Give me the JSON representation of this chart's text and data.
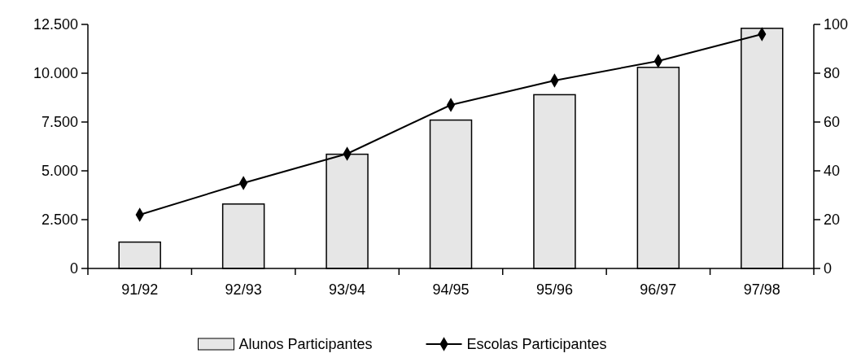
{
  "chart_data": {
    "type": "bar",
    "categories": [
      "91/92",
      "92/93",
      "93/94",
      "94/95",
      "95/96",
      "96/97",
      "97/98"
    ],
    "series": [
      {
        "name": "Alunos Participantes",
        "color": "#e6e6e6",
        "values": [
          1350,
          3300,
          5850,
          7600,
          8900,
          10300,
          12300
        ]
      },
      {
        "name": "Escolas Participantes",
        "type": "line",
        "axis": "y2",
        "color": "#000000",
        "marker": "diamond",
        "values": [
          22,
          35,
          47,
          67,
          77,
          85,
          96
        ]
      }
    ],
    "ylim": [
      0,
      12500
    ],
    "yticks": [
      {
        "value": 0,
        "label": "0"
      },
      {
        "value": 2500,
        "label": "2.500"
      },
      {
        "value": 5000,
        "label": "5.000"
      },
      {
        "value": 7500,
        "label": "7.500"
      },
      {
        "value": 10000,
        "label": "10.000"
      },
      {
        "value": 12500,
        "label": "12.500"
      }
    ],
    "y2lim": [
      0,
      100
    ],
    "y2ticks": [
      0,
      20,
      40,
      60,
      80,
      100
    ],
    "grid": false,
    "legend": "bottom",
    "line_style": "solid"
  }
}
